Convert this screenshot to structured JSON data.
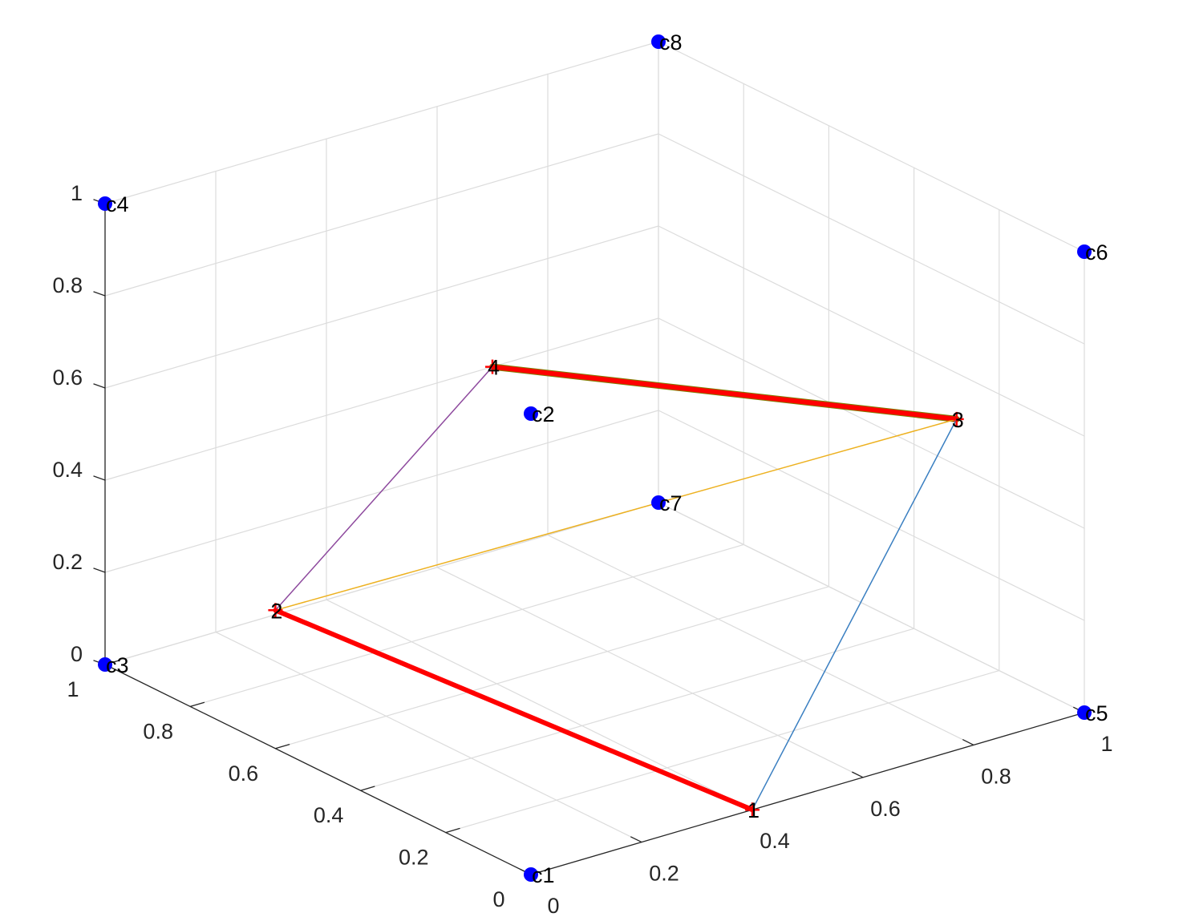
{
  "chart_data": {
    "type": "scatter3d",
    "title": "",
    "xlabel": "",
    "ylabel": "",
    "zlabel": "",
    "xlim": [
      0,
      1
    ],
    "ylim": [
      0,
      1
    ],
    "zlim": [
      0,
      1
    ],
    "grid": true,
    "legend": "none",
    "ticks": {
      "x": [
        "0",
        "0.2",
        "0.4",
        "0.6",
        "0.8",
        "1"
      ],
      "y": [
        "0",
        "0.2",
        "0.4",
        "0.6",
        "0.8",
        "1"
      ],
      "z": [
        "0",
        "0.2",
        "0.4",
        "0.6",
        "0.8",
        "1"
      ]
    },
    "corner_points": [
      {
        "label": "c1",
        "x": 0,
        "y": 0,
        "z": 0
      },
      {
        "label": "c2",
        "x": 0,
        "y": 0,
        "z": 1
      },
      {
        "label": "c3",
        "x": 0,
        "y": 1,
        "z": 0
      },
      {
        "label": "c4",
        "x": 0,
        "y": 1,
        "z": 1
      },
      {
        "label": "c5",
        "x": 1,
        "y": 0,
        "z": 0
      },
      {
        "label": "c6",
        "x": 1,
        "y": 0,
        "z": 1
      },
      {
        "label": "c7",
        "x": 1,
        "y": 1,
        "z": 0
      },
      {
        "label": "c8",
        "x": 1,
        "y": 1,
        "z": 1
      }
    ],
    "path_points": [
      {
        "label": "1",
        "x": 0.4,
        "y": 0,
        "z": 0
      },
      {
        "label": "2",
        "x": 0,
        "y": 0.6,
        "z": 0.3
      },
      {
        "label": "3",
        "x": 1,
        "y": 0.3,
        "z": 0.5
      },
      {
        "label": "4",
        "x": 0.7,
        "y": 1,
        "z": 0.4
      }
    ],
    "edges": [
      {
        "from": 0,
        "to": 1,
        "color": "#ff0000",
        "width": 6
      },
      {
        "from": 2,
        "to": 3,
        "color": "#ff0000",
        "width": 6,
        "outline": "#7e7e00"
      },
      {
        "from": 0,
        "to": 2,
        "color": "#3a7fc1",
        "width": 1.5
      },
      {
        "from": 1,
        "to": 2,
        "color": "#edb120",
        "width": 1.5
      },
      {
        "from": 1,
        "to": 3,
        "color": "#8e4a9e",
        "width": 1.5
      }
    ],
    "colors": {
      "corner_marker": "#0000ff",
      "path_marker": "#ff0000",
      "grid": "#dcdcdc",
      "axis": "#262626"
    }
  }
}
